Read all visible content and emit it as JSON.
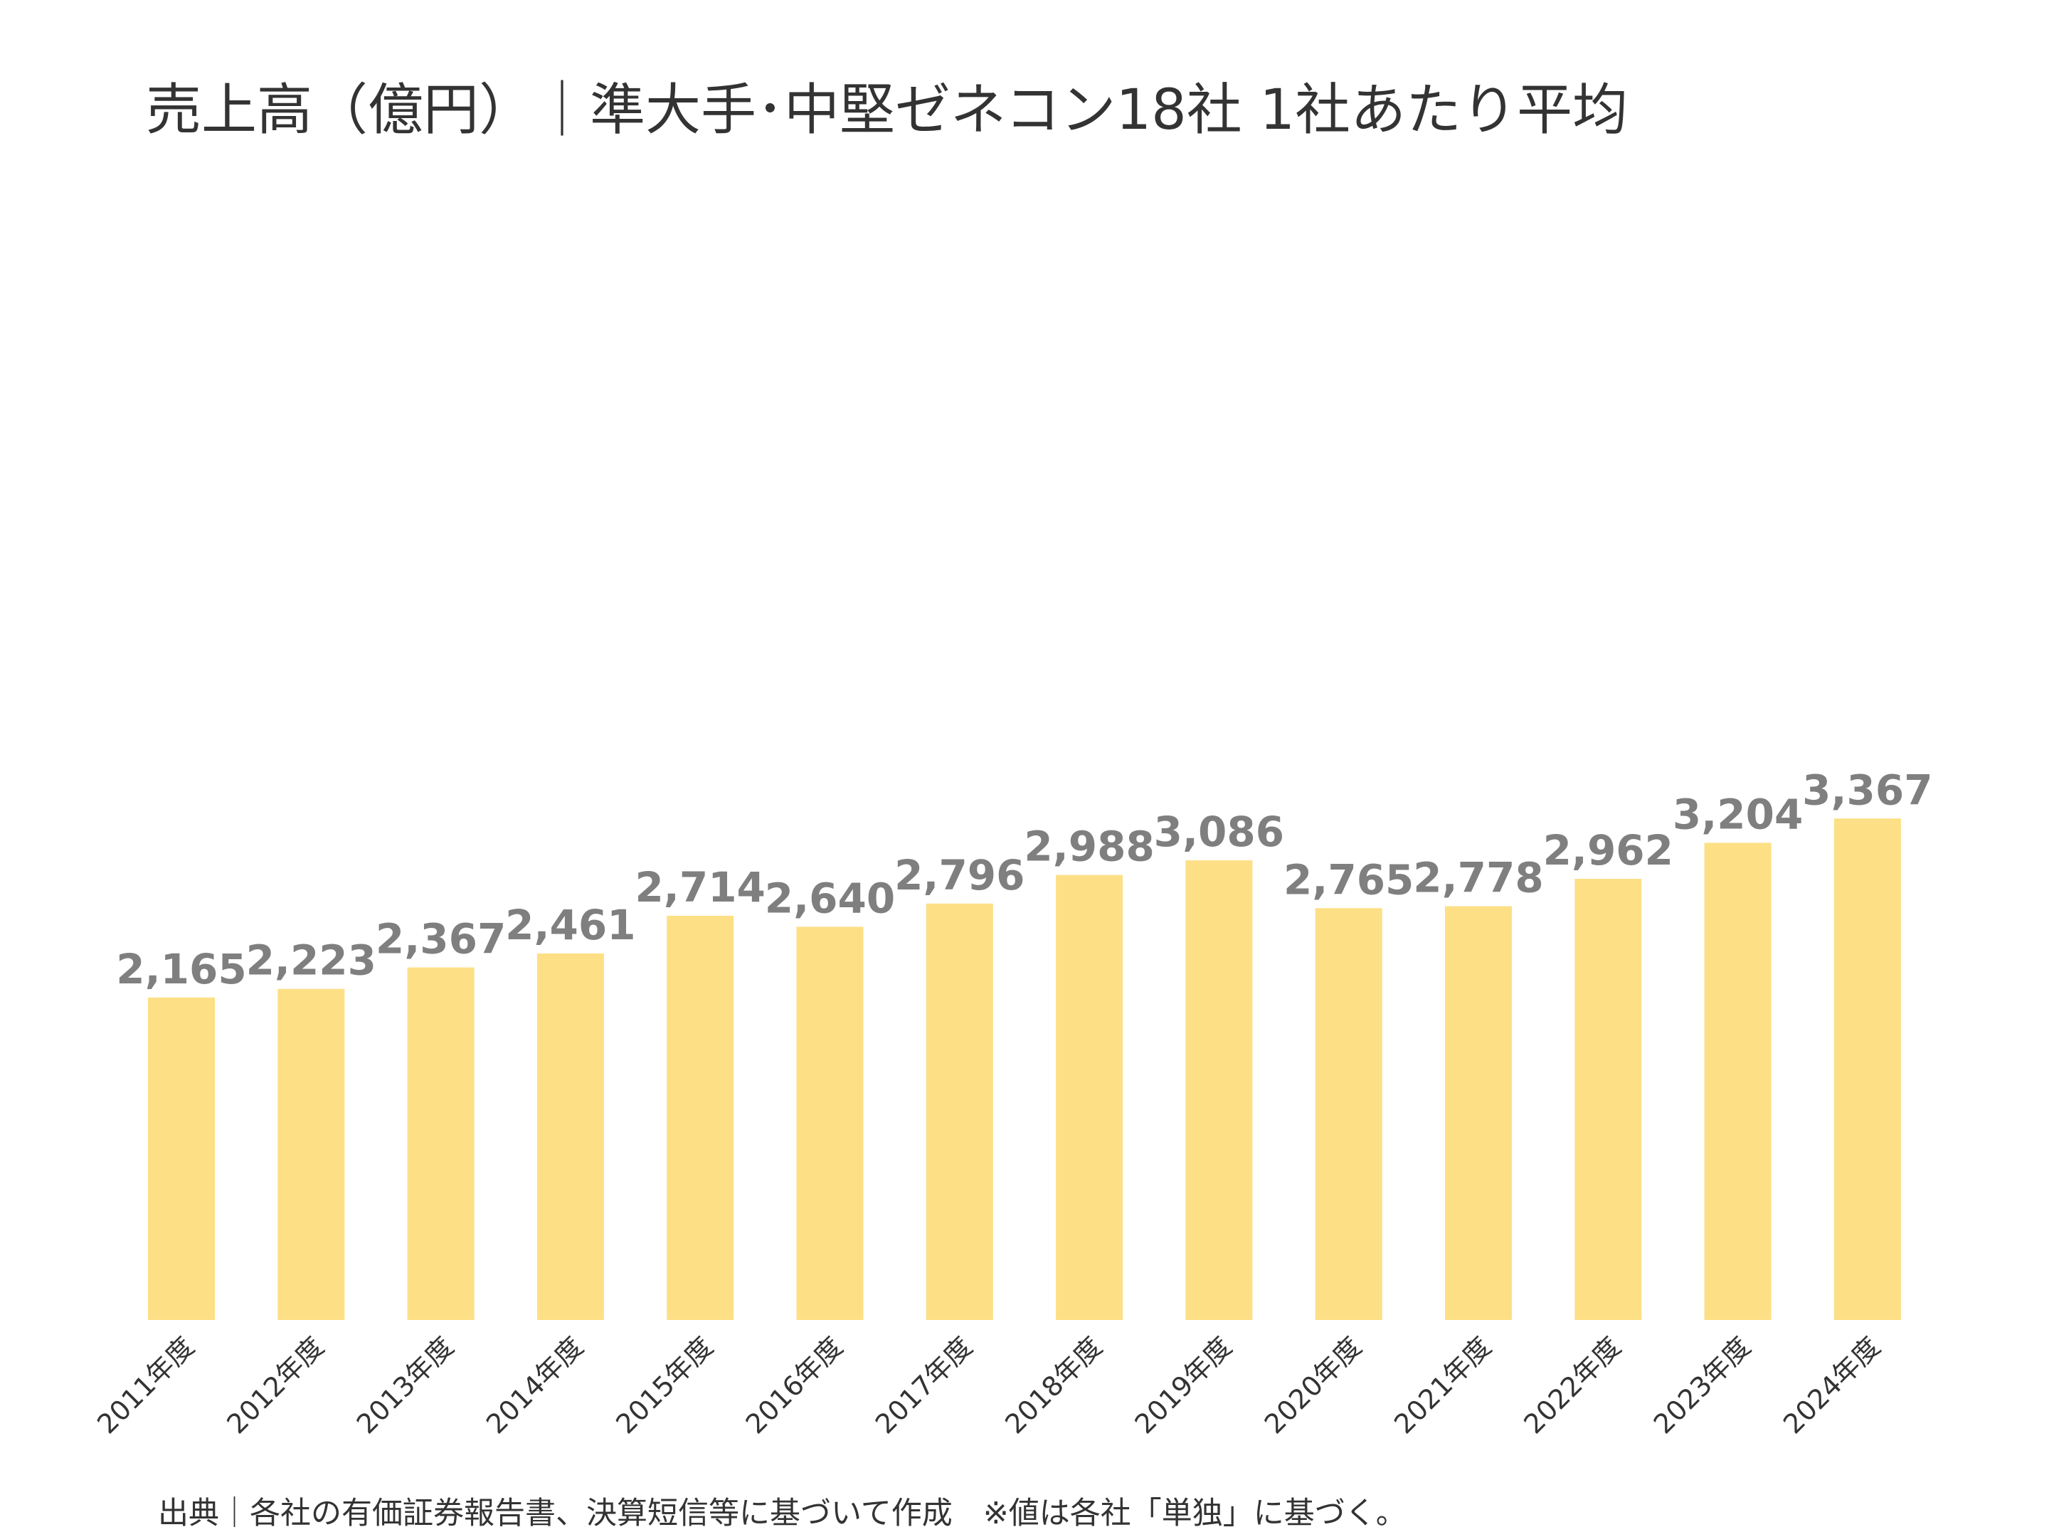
{
  "title": "売上高（億円）｜準大手･中堅ゼネコン18社 1社あたり平均",
  "source_note": "出典｜各社の有価証券報告書、決算短信等に基づいて作成　※値は各社「単独」に基づく。",
  "colors": {
    "bar": "#FDDF85",
    "data_label": "#7F7F7F",
    "axis_label": "#333333"
  },
  "chart_data": {
    "type": "bar",
    "title": "売上高（億円）｜準大手･中堅ゼネコン18社 1社あたり平均",
    "categories": [
      "2011年度",
      "2012年度",
      "2013年度",
      "2014年度",
      "2015年度",
      "2016年度",
      "2017年度",
      "2018年度",
      "2019年度",
      "2020年度",
      "2021年度",
      "2022年度",
      "2023年度",
      "2024年度"
    ],
    "values": [
      2165,
      2223,
      2367,
      2461,
      2714,
      2640,
      2796,
      2988,
      3086,
      2765,
      2778,
      2962,
      3204,
      3367
    ],
    "data_labels": [
      "2,165",
      "2,223",
      "2,367",
      "2,461",
      "2,714",
      "2,640",
      "2,796",
      "2,988",
      "3,086",
      "2,765",
      "2,778",
      "2,962",
      "3,204",
      "3,367"
    ],
    "ylim": [
      0,
      3600
    ],
    "grid": false,
    "legend": "none"
  }
}
